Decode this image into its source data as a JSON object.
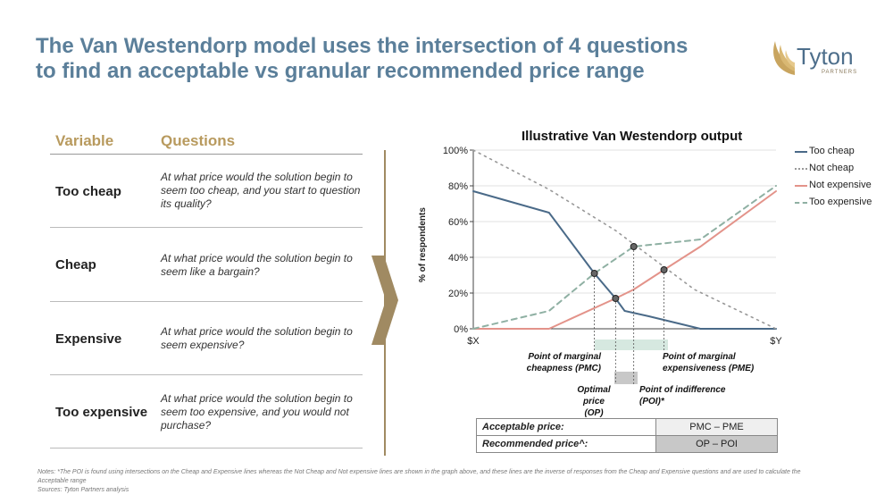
{
  "title_line1": "The Van Westendorp model uses the intersection of 4 questions",
  "title_line2": "to find an acceptable vs granular recommended price range",
  "logo": {
    "name": "Tyton",
    "sub": "PARTNERS"
  },
  "table": {
    "headers": {
      "variable": "Variable",
      "questions": "Questions"
    },
    "rows": [
      {
        "variable": "Too cheap",
        "question": "At what price would the solution begin to seem too cheap, and you start to question its quality?"
      },
      {
        "variable": "Cheap",
        "question": "At what price would the solution begin to seem like a bargain?"
      },
      {
        "variable": "Expensive",
        "question": "At what price would the solution begin to seem expensive?"
      },
      {
        "variable": "Too expensive",
        "question": "At what price would the solution begin to seem too expensive, and you would not purchase?"
      }
    ]
  },
  "chart_data": {
    "type": "line",
    "title": "Illustrative Van Westendorp output",
    "ylabel": "% of respondents",
    "xlabel": "",
    "x_ticks": [
      "$X",
      "$Y"
    ],
    "y_ticks": [
      "0%",
      "20%",
      "40%",
      "60%",
      "80%",
      "100%"
    ],
    "ylim": [
      0,
      100
    ],
    "xlim": [
      0,
      100
    ],
    "legend_position": "right",
    "series": [
      {
        "name": "Too cheap",
        "style": "solid",
        "color": "#4a6a88",
        "points": [
          [
            0,
            77
          ],
          [
            25,
            65
          ],
          [
            40,
            31
          ],
          [
            47,
            17
          ],
          [
            50,
            10
          ],
          [
            58,
            7
          ],
          [
            75,
            0
          ],
          [
            100,
            0
          ]
        ]
      },
      {
        "name": "Not cheap",
        "style": "dotted",
        "color": "#999999",
        "points": [
          [
            0,
            100
          ],
          [
            25,
            78
          ],
          [
            47,
            55
          ],
          [
            73,
            22
          ],
          [
            100,
            0
          ]
        ]
      },
      {
        "name": "Not expensive",
        "style": "solid",
        "color": "#e3938a",
        "points": [
          [
            0,
            0
          ],
          [
            25,
            0
          ],
          [
            47,
            17
          ],
          [
            53,
            22
          ],
          [
            63,
            33
          ],
          [
            75,
            46
          ],
          [
            100,
            77
          ]
        ]
      },
      {
        "name": "Too expensive",
        "style": "dashed",
        "color": "#8fb0a3",
        "points": [
          [
            0,
            0
          ],
          [
            25,
            10
          ],
          [
            40,
            31
          ],
          [
            53,
            46
          ],
          [
            75,
            50
          ],
          [
            100,
            80
          ]
        ]
      }
    ],
    "intersections": [
      {
        "name": "PMC",
        "x": 40,
        "y": 31
      },
      {
        "name": "OP",
        "x": 47,
        "y": 17
      },
      {
        "name": "POI",
        "x": 53,
        "y": 46
      },
      {
        "name": "PME",
        "x": 63,
        "y": 33
      }
    ],
    "annotations": {
      "pmc": "Point of marginal cheapness (PMC)",
      "pme": "Point of marginal expensiveness (PME)",
      "op": "Optimal price (OP)",
      "poi": "Point of indifference (POI)*"
    }
  },
  "price_table": [
    {
      "label": "Acceptable price:",
      "value": "PMC – PME"
    },
    {
      "label": "Recommended price^:",
      "value": "OP – POI"
    }
  ],
  "notes": "Notes: *The POI is found using intersections on the Cheap and Expensive lines whereas the Not Cheap and Not expensive lines are shown in the graph above, and these lines are the inverse of responses from the Cheap and Expensive questions and are used to calculate the Acceptable range",
  "sources": "Sources: Tyton Partners analysis",
  "colors": {
    "title": "#5b7f9a",
    "accent_gold": "#b89a5e",
    "acceptable_band": "#d6e8e0",
    "recommended_band": "#c8c8c8"
  }
}
